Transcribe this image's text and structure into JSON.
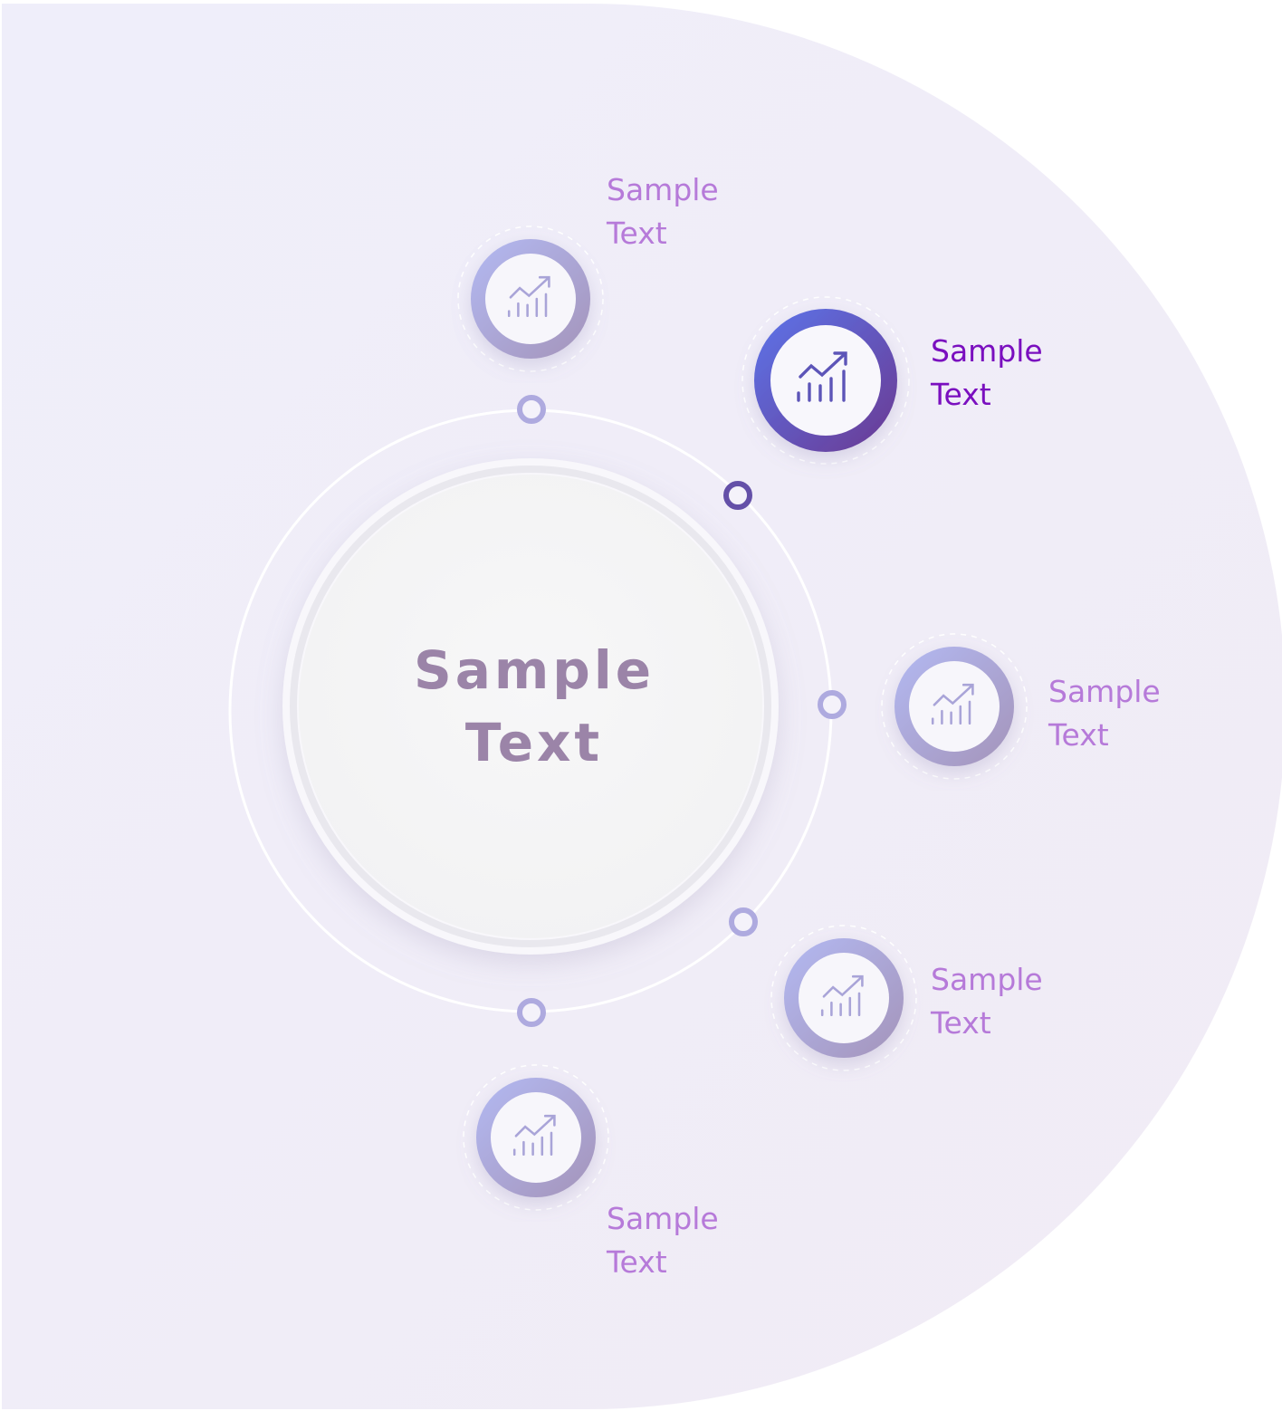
{
  "center": {
    "line1": "Sample",
    "line2": "Text"
  },
  "nodes": [
    {
      "line1": "Sample",
      "line2": "Text",
      "icon": "chart-growth-icon",
      "active": false
    },
    {
      "line1": "Sample",
      "line2": "Text",
      "icon": "chart-growth-icon",
      "active": true
    },
    {
      "line1": "Sample",
      "line2": "Text",
      "icon": "chart-growth-icon",
      "active": false
    },
    {
      "line1": "Sample",
      "line2": "Text",
      "icon": "chart-growth-icon",
      "active": false
    },
    {
      "line1": "Sample",
      "line2": "Text",
      "icon": "chart-growth-icon",
      "active": false
    }
  ],
  "colors": {
    "background_panel": "#efecf8",
    "ring_light_start": "#aab0ea",
    "ring_light_end": "#a897c0",
    "ring_active_start": "#5f6ee0",
    "ring_active_end": "#6b3f99",
    "label": "#b67ad9",
    "label_active": "#7a0fbf",
    "center_text": "#9b84a8"
  }
}
